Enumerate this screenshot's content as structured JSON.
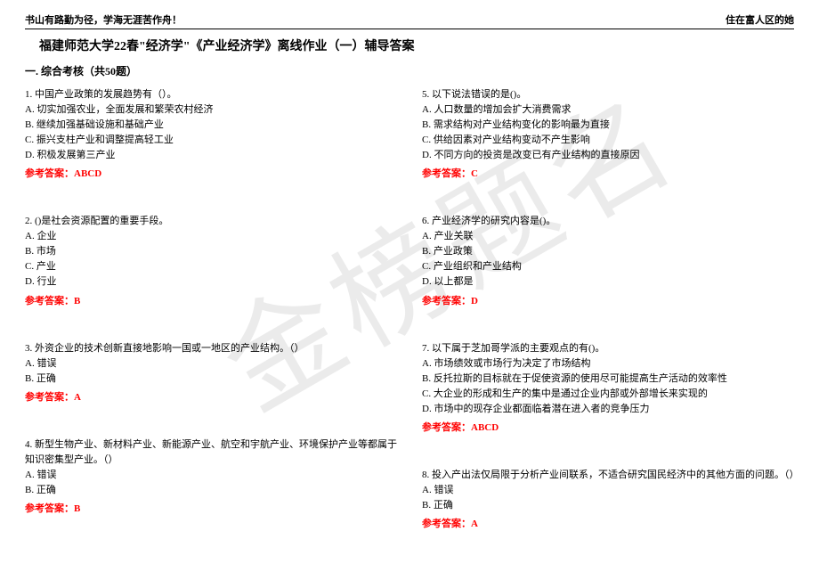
{
  "header": {
    "left": "书山有路勤为径，学海无涯苦作舟！",
    "right": "住在富人区的她"
  },
  "title": "福建师范大学22春\"经济学\"《产业经济学》离线作业（一）辅导答案",
  "section_heading": "一. 综合考核（共50题）",
  "watermark_text": "金榜题名",
  "answer_label": "参考答案：",
  "left_questions": [
    {
      "stem": "1. 中国产业政策的发展趋势有（）。",
      "options": [
        "A. 切实加强农业，全面发展和繁荣农村经济",
        "B. 继续加强基础设施和基础产业",
        "C. 振兴支柱产业和调整提高轻工业",
        "D. 积极发展第三产业"
      ],
      "answer": "ABCD"
    },
    {
      "stem": "2. ()是社会资源配置的重要手段。",
      "options": [
        "A. 企业",
        "B. 市场",
        "C. 产业",
        "D. 行业"
      ],
      "answer": "B"
    },
    {
      "stem": "3. 外资企业的技术创新直接地影响一国或一地区的产业结构。（）",
      "options": [
        "A. 错误",
        "B. 正确"
      ],
      "answer": "A"
    },
    {
      "stem": "4. 新型生物产业、新材料产业、新能源产业、航空和宇航产业、环境保护产业等都属于知识密集型产业。（）",
      "options": [
        "A. 错误",
        "B. 正确"
      ],
      "answer": "B"
    }
  ],
  "right_questions": [
    {
      "stem": "5. 以下说法错误的是()。",
      "options": [
        "A. 人口数量的增加会扩大消费需求",
        "B. 需求结构对产业结构变化的影响最为直接",
        "C. 供给因素对产业结构变动不产生影响",
        "D. 不同方向的投资是改变已有产业结构的直接原因"
      ],
      "answer": "C"
    },
    {
      "stem": "6. 产业经济学的研究内容是()。",
      "options": [
        "A. 产业关联",
        "B. 产业政策",
        "C. 产业组织和产业结构",
        "D. 以上都是"
      ],
      "answer": "D"
    },
    {
      "stem": "7. 以下属于芝加哥学派的主要观点的有()。",
      "options": [
        "A. 市场绩效或市场行为决定了市场结构",
        "B. 反托拉斯的目标就在于促使资源的使用尽可能提高生产活动的效率性",
        "C. 大企业的形成和生产的集中是通过企业内部或外部增长来实现的",
        "D. 市场中的现存企业都面临着潜在进入者的竞争压力"
      ],
      "answer": "ABCD"
    },
    {
      "stem": "8. 投入产出法仅局限于分析产业间联系，不适合研究国民经济中的其他方面的问题。（）",
      "options": [
        "A. 错误",
        "B. 正确"
      ],
      "answer": "A"
    }
  ]
}
